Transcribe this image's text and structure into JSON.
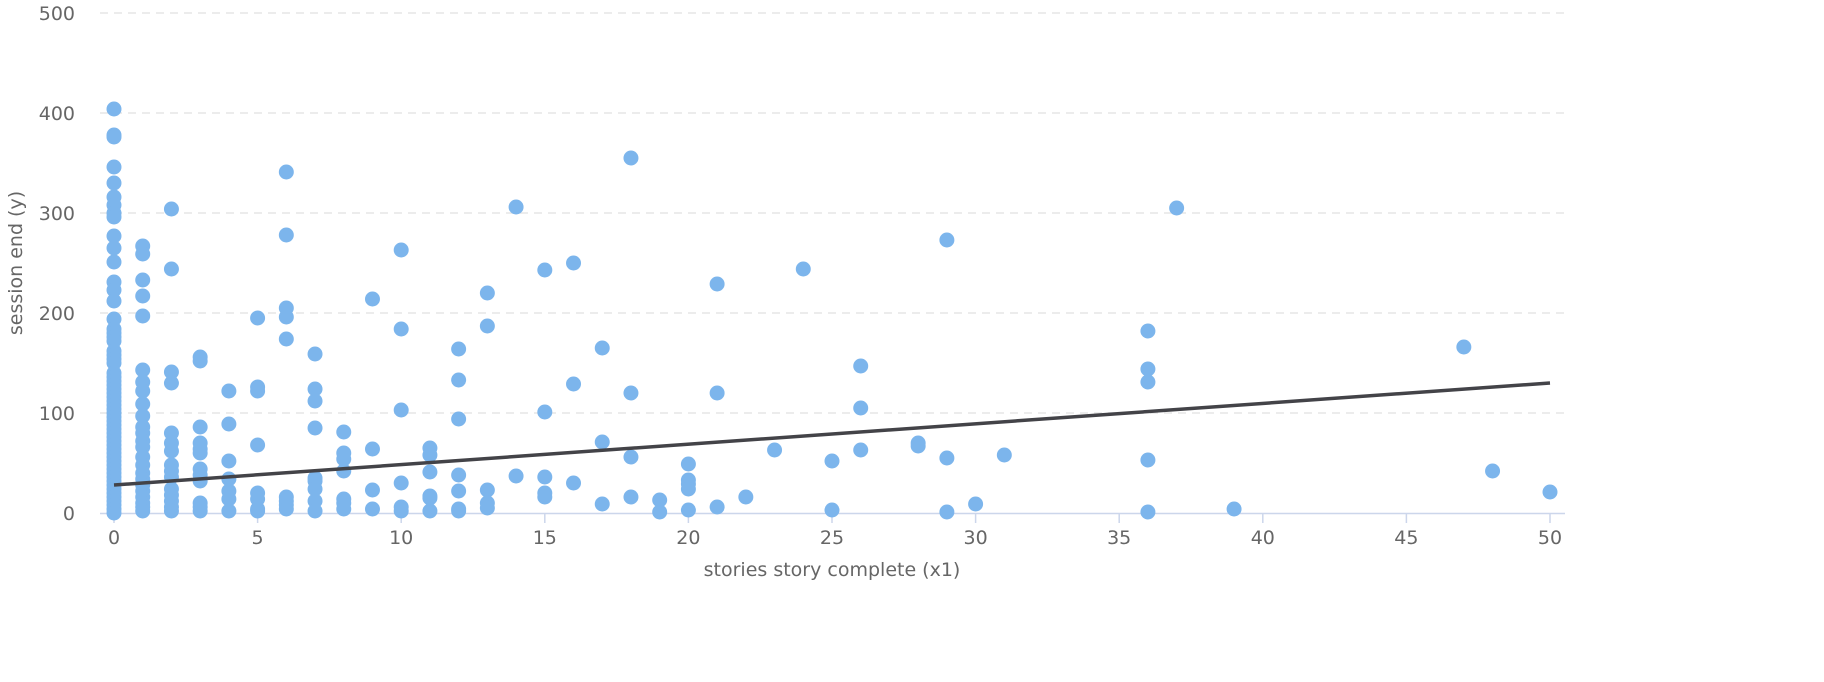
{
  "chart_data": {
    "type": "scatter",
    "xlabel": "stories story complete (x1)",
    "ylabel": "session end (y)",
    "xlim": [
      0,
      50
    ],
    "ylim": [
      0,
      500
    ],
    "x_ticks": [
      0,
      5,
      10,
      15,
      20,
      25,
      30,
      35,
      40,
      45,
      50
    ],
    "y_ticks": [
      0,
      100,
      200,
      300,
      400,
      500
    ],
    "grid": "horizontal dashed",
    "legend": "none",
    "colors": {
      "points": "#7cb5ec",
      "trend": "#434348",
      "grid": "#e6e6e6",
      "axis": "#ccd6eb"
    },
    "trend_line": {
      "x": [
        0,
        50
      ],
      "y": [
        28,
        130
      ]
    },
    "points": [
      {
        "x": 0,
        "ys": [
          404,
          378,
          376,
          346,
          330,
          316,
          308,
          300,
          296,
          277,
          265,
          251,
          231,
          223,
          212,
          194,
          184,
          180,
          176,
          172,
          162,
          158,
          154,
          150,
          140,
          136,
          132,
          128,
          124,
          120,
          116,
          112,
          108,
          104,
          100,
          96,
          92,
          88,
          84,
          80,
          76,
          72,
          68,
          64,
          60,
          56,
          52,
          48,
          44,
          40,
          36,
          32,
          28,
          24,
          20,
          16,
          12,
          8,
          4,
          0
        ]
      },
      {
        "x": 1,
        "ys": [
          267,
          259,
          233,
          217,
          197,
          143,
          131,
          122,
          109,
          97,
          86,
          80,
          72,
          66,
          56,
          48,
          40,
          34,
          28,
          22,
          16,
          10,
          6,
          2
        ]
      },
      {
        "x": 2,
        "ys": [
          304,
          244,
          141,
          130,
          80,
          70,
          62,
          48,
          42,
          36,
          24,
          18,
          12,
          6,
          2
        ]
      },
      {
        "x": 3,
        "ys": [
          156,
          152,
          86,
          70,
          64,
          60,
          44,
          38,
          32,
          10,
          6,
          2
        ]
      },
      {
        "x": 4,
        "ys": [
          122,
          89,
          52,
          34,
          22,
          14,
          2
        ]
      },
      {
        "x": 5,
        "ys": [
          195,
          126,
          122,
          68,
          20,
          14,
          4,
          2
        ]
      },
      {
        "x": 6,
        "ys": [
          341,
          278,
          205,
          196,
          174,
          16,
          12,
          8,
          4
        ]
      },
      {
        "x": 7,
        "ys": [
          159,
          124,
          112,
          85,
          35,
          32,
          24,
          12,
          2
        ]
      },
      {
        "x": 8,
        "ys": [
          81,
          60,
          54,
          42,
          14,
          10,
          4
        ]
      },
      {
        "x": 9,
        "ys": [
          214,
          64,
          23,
          4
        ]
      },
      {
        "x": 10,
        "ys": [
          263,
          184,
          103,
          30,
          6,
          2
        ]
      },
      {
        "x": 11,
        "ys": [
          65,
          58,
          41,
          17,
          15,
          2
        ]
      },
      {
        "x": 12,
        "ys": [
          164,
          133,
          94,
          38,
          22,
          4,
          2
        ]
      },
      {
        "x": 13,
        "ys": [
          220,
          187,
          23,
          10,
          5
        ]
      },
      {
        "x": 14,
        "ys": [
          306,
          37
        ]
      },
      {
        "x": 15,
        "ys": [
          243,
          101,
          36,
          20,
          16
        ]
      },
      {
        "x": 16,
        "ys": [
          250,
          129,
          30
        ]
      },
      {
        "x": 17,
        "ys": [
          165,
          71,
          9
        ]
      },
      {
        "x": 18,
        "ys": [
          355,
          120,
          56,
          16
        ]
      },
      {
        "x": 19,
        "ys": [
          13,
          1
        ]
      },
      {
        "x": 20,
        "ys": [
          49,
          33,
          29,
          24,
          3
        ]
      },
      {
        "x": 21,
        "ys": [
          229,
          120,
          6
        ]
      },
      {
        "x": 22,
        "ys": [
          16
        ]
      },
      {
        "x": 23,
        "ys": [
          63
        ]
      },
      {
        "x": 24,
        "ys": [
          244
        ]
      },
      {
        "x": 25,
        "ys": [
          52,
          3
        ]
      },
      {
        "x": 26,
        "ys": [
          147,
          105,
          63
        ]
      },
      {
        "x": 28,
        "ys": [
          70,
          67
        ]
      },
      {
        "x": 29,
        "ys": [
          273,
          55,
          1
        ]
      },
      {
        "x": 30,
        "ys": [
          9
        ]
      },
      {
        "x": 31,
        "ys": [
          58
        ]
      },
      {
        "x": 36,
        "ys": [
          182,
          144,
          131,
          53,
          1
        ]
      },
      {
        "x": 37,
        "ys": [
          305
        ]
      },
      {
        "x": 39,
        "ys": [
          4
        ]
      },
      {
        "x": 47,
        "ys": [
          166
        ]
      },
      {
        "x": 48,
        "ys": [
          42
        ]
      },
      {
        "x": 50,
        "ys": [
          21
        ]
      }
    ]
  }
}
